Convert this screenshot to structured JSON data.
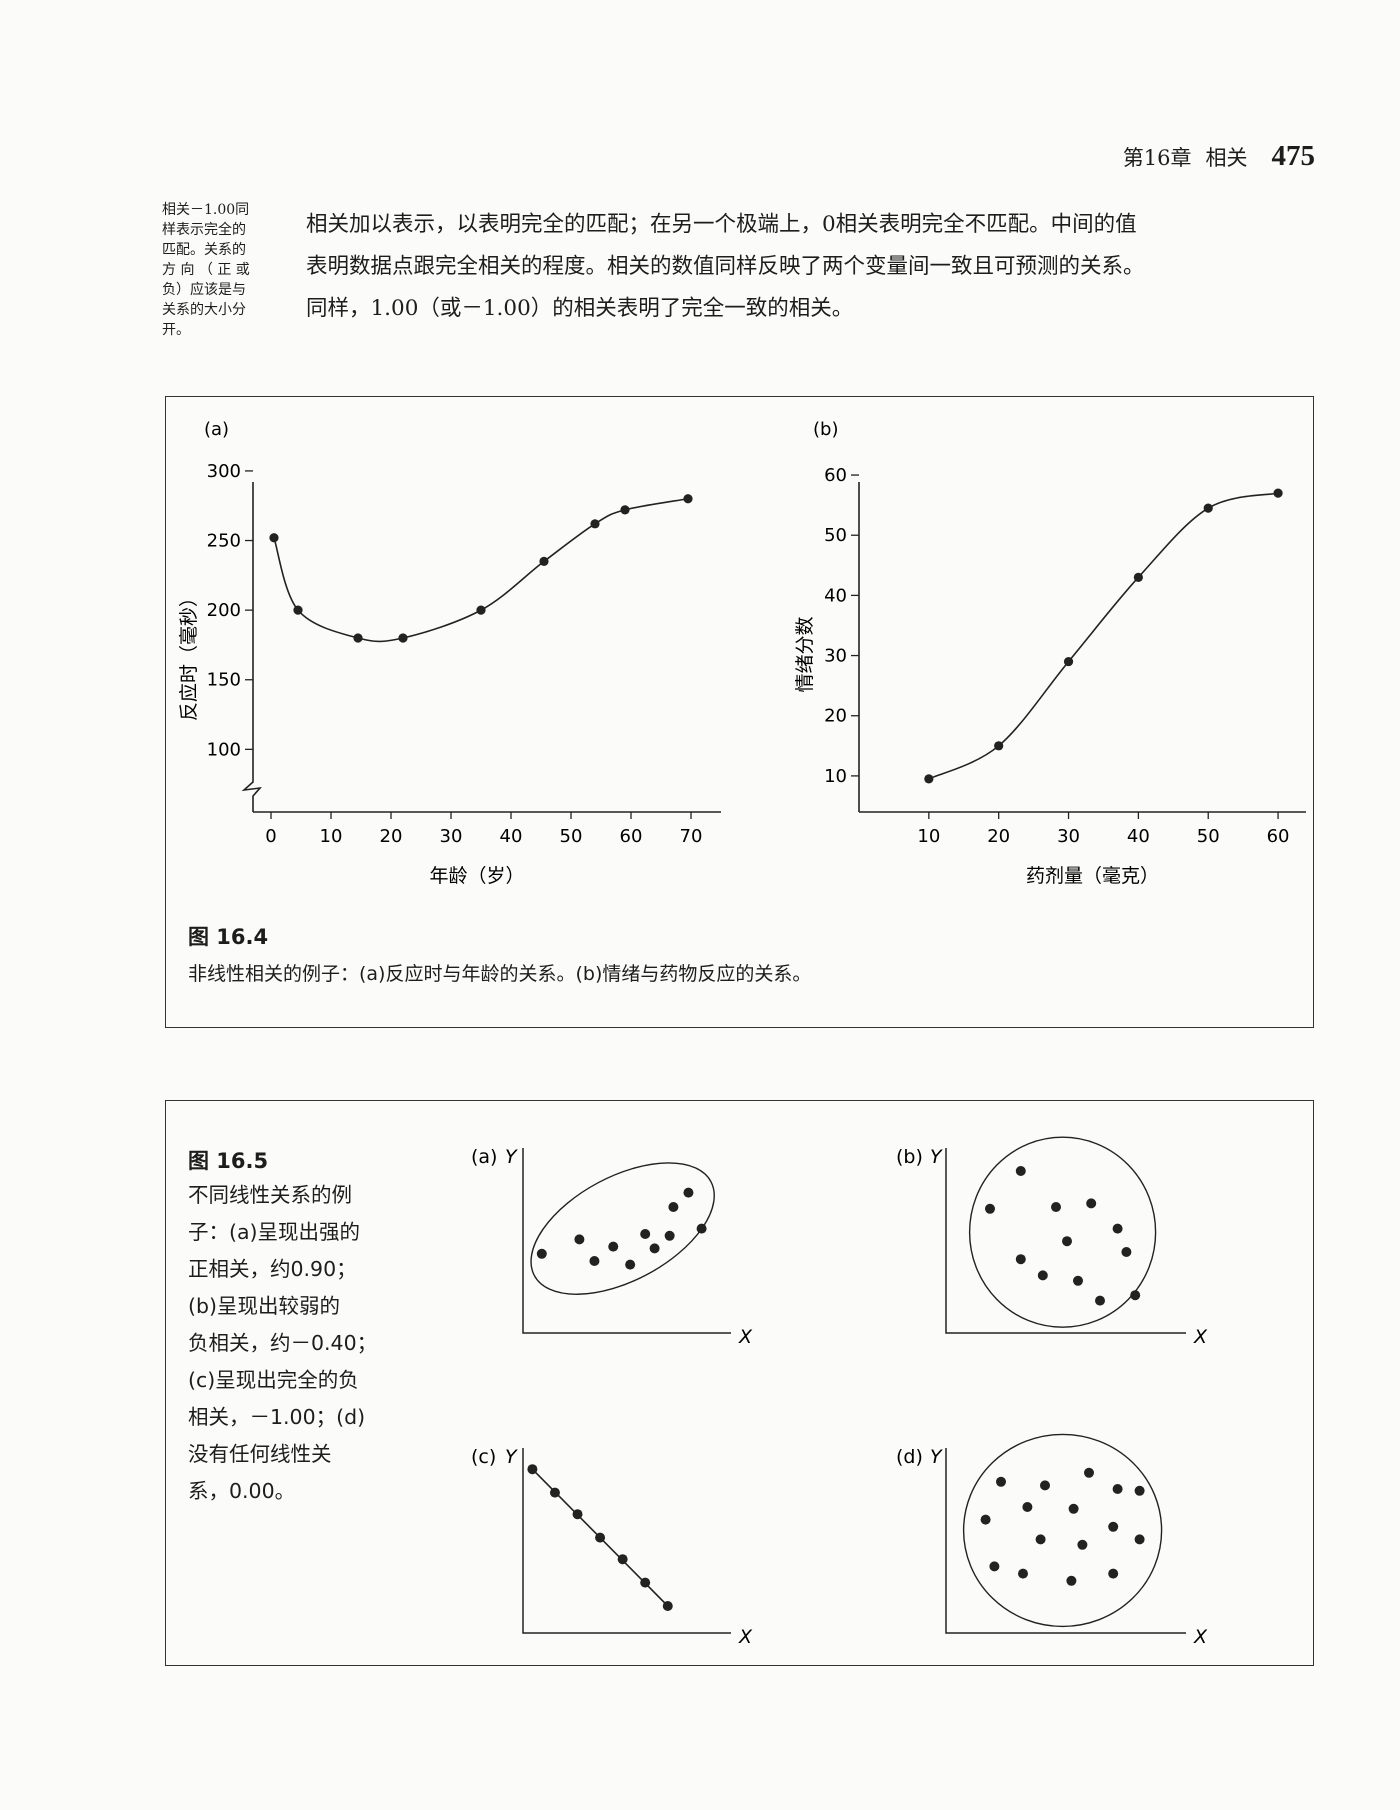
{
  "header": {
    "chapter": "第16章",
    "section": "相关",
    "page_number": "475"
  },
  "margin_note": {
    "lines": [
      "相关－1.00同",
      "样表示完全的",
      "匹配。关系的",
      "方 向 （ 正 或",
      "负）应该是与",
      "关系的大小分",
      "开。"
    ]
  },
  "body": {
    "lines": [
      "相关加以表示，以表明完全的匹配；在另一个极端上，0相关表明完全不匹配。中间的值",
      "表明数据点跟完全相关的程度。相关的数值同样反映了两个变量间一致且可预测的关系。",
      "同样，1.00（或－1.00）的相关表明了完全一致的相关。"
    ]
  },
  "figure_16_4": {
    "title": "图 16.4",
    "caption": "非线性相关的例子：(a)反应时与年龄的关系。(b)情绪与药物反应的关系。",
    "panel_a_label": "(a)",
    "panel_b_label": "(b)"
  },
  "figure_16_5": {
    "title": "图 16.5",
    "caption_lines": [
      "不同线性关系的例",
      "子：(a)呈现出强的",
      "正相关，约0.90；",
      "(b)呈现出较弱的",
      "负相关，约－0.40；",
      "(c)呈现出完全的负",
      "相关，－1.00；(d)",
      "没有任何线性关",
      "系，0.00。"
    ],
    "panels": [
      {
        "label": "(a)",
        "y": "Y",
        "x": "X"
      },
      {
        "label": "(b)",
        "y": "Y",
        "x": "X"
      },
      {
        "label": "(c)",
        "y": "Y",
        "x": "X"
      },
      {
        "label": "(d)",
        "y": "Y",
        "x": "X"
      }
    ]
  },
  "chart_data": [
    {
      "type": "line",
      "panel": "(a)",
      "xlabel": "年龄（岁）",
      "ylabel": "反应时（毫秒）",
      "x_ticks": [
        0,
        10,
        20,
        30,
        40,
        50,
        60,
        70
      ],
      "y_ticks": [
        100,
        150,
        200,
        250,
        300
      ],
      "xlim": [
        -3,
        75
      ],
      "ylim": [
        55,
        310
      ],
      "axis_break": true,
      "x": [
        0.5,
        4.5,
        14.5,
        22,
        35,
        45.5,
        54,
        59,
        69.5
      ],
      "y": [
        252,
        200,
        180,
        180,
        200,
        235,
        262,
        272,
        280
      ]
    },
    {
      "type": "line",
      "panel": "(b)",
      "xlabel": "药剂量（毫克）",
      "ylabel": "情绪分数",
      "x_ticks": [
        10,
        20,
        30,
        40,
        50,
        60
      ],
      "y_ticks": [
        10,
        20,
        30,
        40,
        50,
        60
      ],
      "xlim": [
        0,
        64
      ],
      "ylim": [
        4,
        63
      ],
      "x": [
        10,
        20,
        30,
        40,
        50,
        60
      ],
      "y": [
        9.5,
        15,
        29,
        43,
        54.5,
        57
      ]
    },
    {
      "type": "scatter",
      "panel": "(a)",
      "points": [
        [
          0.1,
          0.44
        ],
        [
          0.3,
          0.52
        ],
        [
          0.38,
          0.4
        ],
        [
          0.48,
          0.48
        ],
        [
          0.57,
          0.38
        ],
        [
          0.65,
          0.55
        ],
        [
          0.78,
          0.54
        ],
        [
          0.8,
          0.7
        ],
        [
          0.7,
          0.47
        ],
        [
          0.88,
          0.78
        ],
        [
          0.95,
          0.58
        ]
      ]
    },
    {
      "type": "scatter",
      "panel": "(b)",
      "points": [
        [
          0.34,
          0.9
        ],
        [
          0.2,
          0.69
        ],
        [
          0.5,
          0.7
        ],
        [
          0.66,
          0.72
        ],
        [
          0.55,
          0.51
        ],
        [
          0.34,
          0.41
        ],
        [
          0.78,
          0.58
        ],
        [
          0.44,
          0.32
        ],
        [
          0.6,
          0.29
        ],
        [
          0.7,
          0.18
        ],
        [
          0.82,
          0.45
        ],
        [
          0.86,
          0.21
        ]
      ]
    },
    {
      "type": "scatter",
      "panel": "(c)",
      "points": [
        [
          0.05,
          0.91
        ],
        [
          0.17,
          0.78
        ],
        [
          0.29,
          0.66
        ],
        [
          0.41,
          0.53
        ],
        [
          0.53,
          0.41
        ],
        [
          0.65,
          0.28
        ],
        [
          0.77,
          0.15
        ]
      ]
    },
    {
      "type": "scatter",
      "panel": "(d)",
      "points": [
        [
          0.25,
          0.84
        ],
        [
          0.45,
          0.82
        ],
        [
          0.65,
          0.89
        ],
        [
          0.78,
          0.8
        ],
        [
          0.88,
          0.79
        ],
        [
          0.37,
          0.7
        ],
        [
          0.58,
          0.69
        ],
        [
          0.18,
          0.63
        ],
        [
          0.76,
          0.59
        ],
        [
          0.43,
          0.52
        ],
        [
          0.62,
          0.49
        ],
        [
          0.88,
          0.52
        ],
        [
          0.22,
          0.37
        ],
        [
          0.35,
          0.33
        ],
        [
          0.57,
          0.29
        ],
        [
          0.76,
          0.33
        ]
      ]
    }
  ]
}
